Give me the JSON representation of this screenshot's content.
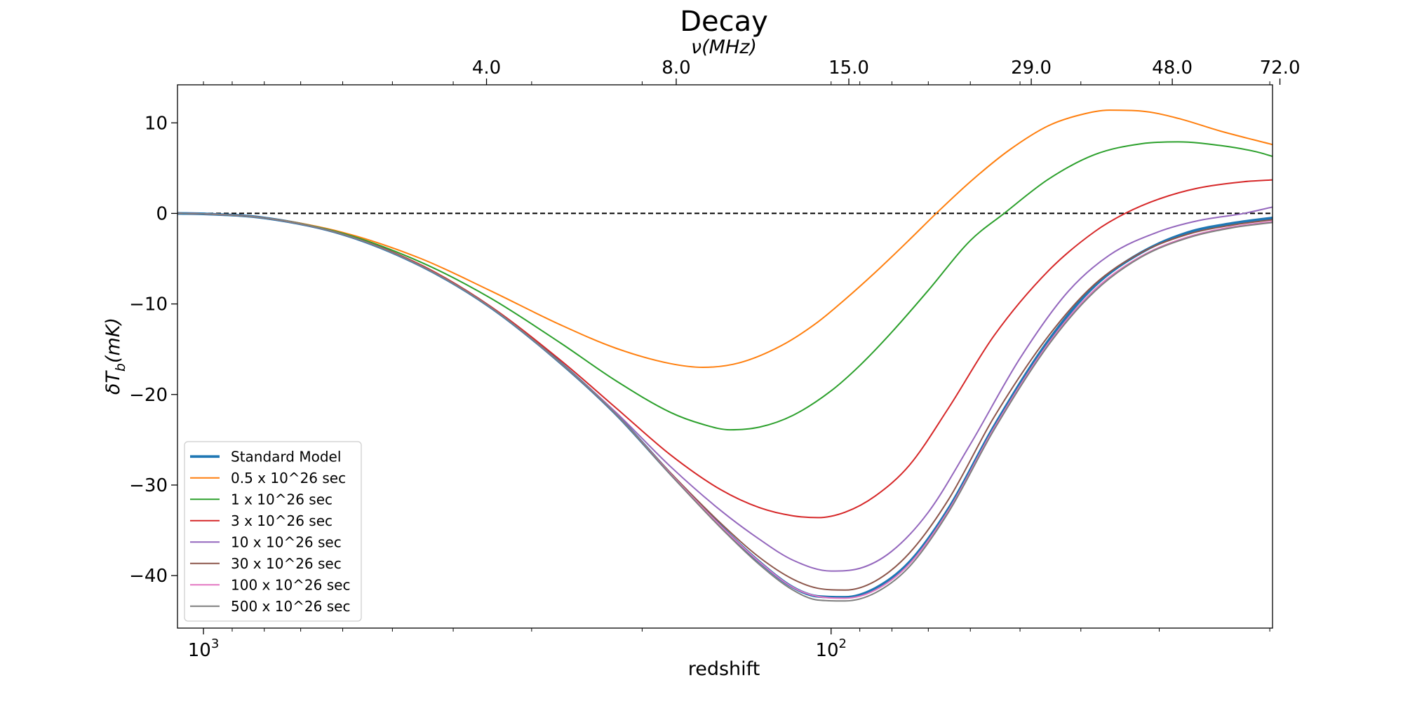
{
  "chart_data": {
    "type": "line",
    "title": "Decay",
    "xlabel": "redshift",
    "ylabel": "δT_b(mK)",
    "top_xlabel": "ν(MHz)",
    "x_scale": "log",
    "x_reversed": true,
    "xlim": [
      1100,
      19.8
    ],
    "ylim": [
      -45.8,
      14.2
    ],
    "x_ticks": [
      {
        "value": 1000,
        "label": "10^3"
      },
      {
        "value": 100,
        "label": "10^2"
      }
    ],
    "top_ticks": [
      {
        "value": 354,
        "label": "4.0"
      },
      {
        "value": 176.5,
        "label": "8.0"
      },
      {
        "value": 93.7,
        "label": "15.0"
      },
      {
        "value": 47.98,
        "label": "29.0"
      },
      {
        "value": 28.6,
        "label": "48.0"
      },
      {
        "value": 19.27,
        "label": "72.0"
      }
    ],
    "y_ticks": [
      10,
      0,
      -10,
      -20,
      -30,
      -40
    ],
    "y_tick_labels": [
      "10",
      "0",
      "−10",
      "−20",
      "−30",
      "−40"
    ],
    "reference_line": {
      "y": 0,
      "style": "dashed",
      "color": "#000000"
    },
    "legend_position": "lower-left",
    "series": [
      {
        "name": "Standard Model",
        "color": "#1f77b4",
        "width": 3.8,
        "points": [
          [
            1100,
            0
          ],
          [
            1000,
            -0.05
          ],
          [
            800,
            -0.5
          ],
          [
            600,
            -2.3
          ],
          [
            450,
            -5.8
          ],
          [
            350,
            -10.3
          ],
          [
            270,
            -16.5
          ],
          [
            220,
            -22.2
          ],
          [
            180,
            -28.8
          ],
          [
            150,
            -34.5
          ],
          [
            130,
            -38.5
          ],
          [
            115,
            -41.3
          ],
          [
            105,
            -42.3
          ],
          [
            95,
            -42.4
          ],
          [
            85,
            -41.4
          ],
          [
            75,
            -38.5
          ],
          [
            65,
            -32.6
          ],
          [
            55,
            -23.5
          ],
          [
            45,
            -14
          ],
          [
            38,
            -8
          ],
          [
            32,
            -4.3
          ],
          [
            27,
            -2.1
          ],
          [
            23,
            -1.1
          ],
          [
            19.8,
            -0.5
          ]
        ]
      },
      {
        "name": "0.5 x 10^26 sec",
        "color": "#ff7f0e",
        "width": 2,
        "points": [
          [
            1100,
            0
          ],
          [
            1000,
            -0.05
          ],
          [
            800,
            -0.5
          ],
          [
            600,
            -2.1
          ],
          [
            450,
            -5
          ],
          [
            350,
            -8.5
          ],
          [
            270,
            -12.3
          ],
          [
            220,
            -14.9
          ],
          [
            180,
            -16.6
          ],
          [
            160,
            -17
          ],
          [
            140,
            -16.5
          ],
          [
            120,
            -14.6
          ],
          [
            105,
            -12
          ],
          [
            95,
            -9.5
          ],
          [
            85,
            -6.5
          ],
          [
            75,
            -2.9
          ],
          [
            68,
            0
          ],
          [
            60,
            3.5
          ],
          [
            52,
            7
          ],
          [
            45,
            9.7
          ],
          [
            40,
            10.9
          ],
          [
            36,
            11.4
          ],
          [
            32,
            11.3
          ],
          [
            28,
            10.5
          ],
          [
            24,
            9.1
          ],
          [
            19.8,
            7.6
          ]
        ]
      },
      {
        "name": "1 x 10^26 sec",
        "color": "#2ca02c",
        "width": 2,
        "points": [
          [
            1100,
            0
          ],
          [
            1000,
            -0.05
          ],
          [
            800,
            -0.5
          ],
          [
            600,
            -2.2
          ],
          [
            450,
            -5.4
          ],
          [
            350,
            -9.3
          ],
          [
            270,
            -14.3
          ],
          [
            220,
            -18.5
          ],
          [
            180,
            -22
          ],
          [
            160,
            -23.3
          ],
          [
            145,
            -23.9
          ],
          [
            130,
            -23.6
          ],
          [
            115,
            -22.3
          ],
          [
            100,
            -19.6
          ],
          [
            90,
            -16.8
          ],
          [
            80,
            -13.1
          ],
          [
            70,
            -8.5
          ],
          [
            60,
            -3
          ],
          [
            53,
            0
          ],
          [
            45,
            3.8
          ],
          [
            38,
            6.5
          ],
          [
            32,
            7.7
          ],
          [
            28,
            7.9
          ],
          [
            24,
            7.5
          ],
          [
            21,
            6.8
          ],
          [
            19.8,
            6.3
          ]
        ]
      },
      {
        "name": "3 x 10^26 sec",
        "color": "#d62728",
        "width": 2,
        "points": [
          [
            1100,
            0
          ],
          [
            1000,
            -0.05
          ],
          [
            800,
            -0.5
          ],
          [
            600,
            -2.3
          ],
          [
            450,
            -5.7
          ],
          [
            350,
            -10.2
          ],
          [
            270,
            -16.2
          ],
          [
            220,
            -21.5
          ],
          [
            180,
            -26.7
          ],
          [
            150,
            -30.5
          ],
          [
            130,
            -32.5
          ],
          [
            115,
            -33.4
          ],
          [
            105,
            -33.6
          ],
          [
            95,
            -33
          ],
          [
            85,
            -31.2
          ],
          [
            75,
            -27.8
          ],
          [
            65,
            -21.5
          ],
          [
            55,
            -13.5
          ],
          [
            45,
            -6.3
          ],
          [
            38,
            -2
          ],
          [
            34,
            0
          ],
          [
            30,
            1.6
          ],
          [
            26,
            2.8
          ],
          [
            22,
            3.5
          ],
          [
            19.8,
            3.7
          ]
        ]
      },
      {
        "name": "10 x 10^26 sec",
        "color": "#9467bd",
        "width": 2,
        "points": [
          [
            1100,
            0
          ],
          [
            1000,
            -0.05
          ],
          [
            800,
            -0.5
          ],
          [
            600,
            -2.3
          ],
          [
            450,
            -5.8
          ],
          [
            350,
            -10.3
          ],
          [
            270,
            -16.5
          ],
          [
            220,
            -22
          ],
          [
            180,
            -28
          ],
          [
            150,
            -32.8
          ],
          [
            130,
            -36
          ],
          [
            115,
            -38.3
          ],
          [
            100,
            -39.5
          ],
          [
            90,
            -39.2
          ],
          [
            80,
            -37.3
          ],
          [
            70,
            -33
          ],
          [
            60,
            -25.5
          ],
          [
            50,
            -16
          ],
          [
            42,
            -8.7
          ],
          [
            36,
            -4.6
          ],
          [
            30,
            -2
          ],
          [
            26,
            -0.8
          ],
          [
            22,
            0
          ],
          [
            19.8,
            0.7
          ]
        ]
      },
      {
        "name": "30 x 10^26 sec",
        "color": "#8c564b",
        "width": 2,
        "points": [
          [
            1100,
            0
          ],
          [
            1000,
            -0.05
          ],
          [
            800,
            -0.5
          ],
          [
            600,
            -2.3
          ],
          [
            450,
            -5.8
          ],
          [
            350,
            -10.3
          ],
          [
            270,
            -16.5
          ],
          [
            220,
            -22.2
          ],
          [
            180,
            -28.7
          ],
          [
            150,
            -34.2
          ],
          [
            130,
            -38
          ],
          [
            115,
            -40.4
          ],
          [
            105,
            -41.4
          ],
          [
            95,
            -41.6
          ],
          [
            85,
            -40.6
          ],
          [
            75,
            -37.5
          ],
          [
            65,
            -31.6
          ],
          [
            55,
            -22.5
          ],
          [
            45,
            -13.5
          ],
          [
            38,
            -7.8
          ],
          [
            32,
            -4.3
          ],
          [
            27,
            -2.3
          ],
          [
            23,
            -1.3
          ],
          [
            19.8,
            -0.7
          ]
        ]
      },
      {
        "name": "100 x 10^26 sec",
        "color": "#e377c2",
        "width": 2,
        "points": [
          [
            1100,
            0
          ],
          [
            1000,
            -0.05
          ],
          [
            800,
            -0.5
          ],
          [
            600,
            -2.3
          ],
          [
            450,
            -5.8
          ],
          [
            350,
            -10.3
          ],
          [
            270,
            -16.5
          ],
          [
            220,
            -22.2
          ],
          [
            180,
            -28.8
          ],
          [
            150,
            -34.5
          ],
          [
            130,
            -38.5
          ],
          [
            115,
            -41.3
          ],
          [
            105,
            -42.3
          ],
          [
            95,
            -42.5
          ],
          [
            85,
            -41.6
          ],
          [
            75,
            -38.7
          ],
          [
            65,
            -32.8
          ],
          [
            55,
            -23.7
          ],
          [
            45,
            -14.3
          ],
          [
            38,
            -8.4
          ],
          [
            32,
            -4.7
          ],
          [
            27,
            -2.6
          ],
          [
            23,
            -1.5
          ],
          [
            19.8,
            -0.9
          ]
        ]
      },
      {
        "name": "500 x 10^26 sec",
        "color": "#7f7f7f",
        "width": 2,
        "points": [
          [
            1100,
            0
          ],
          [
            1000,
            -0.05
          ],
          [
            800,
            -0.5
          ],
          [
            600,
            -2.3
          ],
          [
            450,
            -5.8
          ],
          [
            350,
            -10.3
          ],
          [
            270,
            -16.5
          ],
          [
            220,
            -22.2
          ],
          [
            180,
            -28.9
          ],
          [
            150,
            -34.7
          ],
          [
            130,
            -38.8
          ],
          [
            115,
            -41.6
          ],
          [
            105,
            -42.7
          ],
          [
            95,
            -42.8
          ],
          [
            85,
            -41.9
          ],
          [
            75,
            -39
          ],
          [
            65,
            -33
          ],
          [
            55,
            -23.9
          ],
          [
            45,
            -14.5
          ],
          [
            38,
            -8.6
          ],
          [
            32,
            -4.8
          ],
          [
            27,
            -2.7
          ],
          [
            23,
            -1.6
          ],
          [
            19.8,
            -1
          ]
        ]
      }
    ]
  }
}
